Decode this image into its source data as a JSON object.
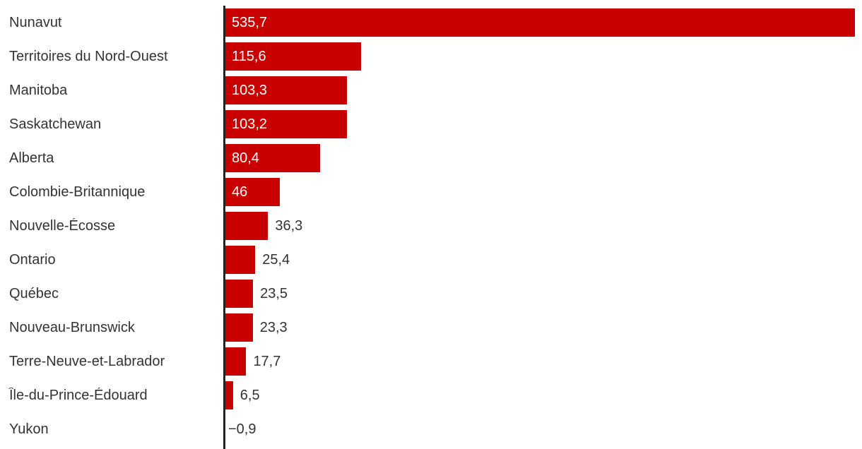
{
  "chart_data": {
    "type": "bar",
    "orientation": "horizontal",
    "title": "",
    "xlabel": "",
    "ylabel": "",
    "categories": [
      "Nunavut",
      "Territoires du Nord-Ouest",
      "Manitoba",
      "Saskatchewan",
      "Alberta",
      "Colombie-Britannique",
      "Nouvelle-Écosse",
      "Ontario",
      "Québec",
      "Nouveau-Brunswick",
      "Terre-Neuve-et-Labrador",
      "Île-du-Prince-Édouard",
      "Yukon"
    ],
    "values": [
      535.7,
      115.6,
      103.3,
      103.2,
      80.4,
      46,
      36.3,
      25.4,
      23.5,
      23.3,
      17.7,
      6.5,
      -0.9
    ],
    "value_labels": [
      "535,7",
      "115,6",
      "103,3",
      "103,2",
      "80,4",
      "46",
      "36,3",
      "25,4",
      "23,5",
      "23,3",
      "17,7",
      "6,5",
      "−0,9"
    ],
    "xlim": [
      0,
      541.7
    ],
    "grid": false,
    "legend": false,
    "colors": {
      "bar": "#c80000",
      "axis": "#222222",
      "category_text": "#333333",
      "value_text_inside": "#ffffff",
      "value_text_outside": "#333333",
      "background": "#ffffff"
    },
    "value_label_inside_threshold": 40
  }
}
